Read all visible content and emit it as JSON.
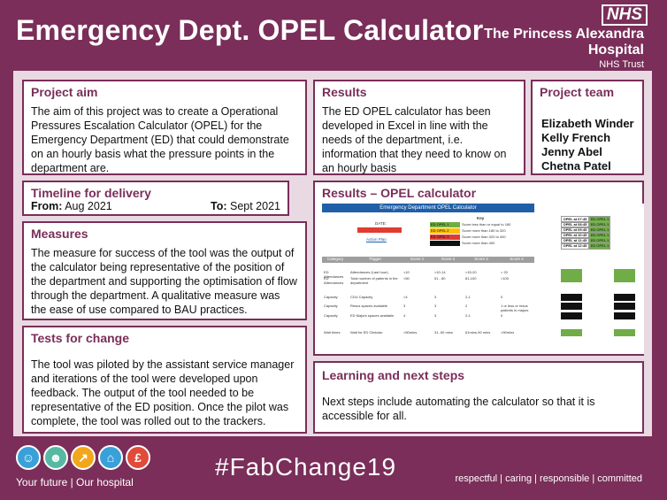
{
  "header": {
    "title": "Emergency Dept. OPEL Calculator",
    "nhs_logo": "NHS",
    "trust_line1": "The Princess Alexandra",
    "trust_line2": "Hospital",
    "trust_line3": "NHS Trust"
  },
  "project_aim": {
    "heading": "Project aim",
    "text": "The aim of this project was to create a Operational Pressures Escalation Calculator (OPEL) for the Emergency Department (ED) that could demonstrate on an hourly basis what the pressure points in the department are."
  },
  "timeline": {
    "heading": "Timeline for delivery",
    "from_label": "From:",
    "from_value": "Aug 2021",
    "to_label": "To:",
    "to_value": "Sept 2021"
  },
  "measures": {
    "heading": "Measures",
    "text": "The measure for success of the tool was the output of the calculator being representative of the position of the department and supporting the optimisation of flow through the department. A qualitative measure was the ease of use compared to BAU practices."
  },
  "tests": {
    "heading": "Tests for change",
    "text": "The tool was piloted by the assistant service manager and iterations of the tool were developed upon feedback. The output of the tool needed to be representative of the ED position. Once the pilot was complete, the tool was rolled out to the trackers."
  },
  "results": {
    "heading": "Results",
    "text": "The ED OPEL calculator has been developed in Excel in line with the needs of the department, i.e. information that they need to know on an hourly basis"
  },
  "team": {
    "heading": "Project team",
    "members": [
      "Elizabeth Winder",
      "Kelly French",
      "Jenny Abel",
      "Chetna Patel"
    ]
  },
  "opel": {
    "heading": "Results – OPEL calculator",
    "sheet_title": "Emergency Department OPEL Calculator",
    "date_label": "DATE:",
    "action_plan": "Action Plan",
    "key_label": "Key",
    "key": [
      {
        "label": "ED OPEL 1",
        "desc": "Score less than or equal to 180",
        "color": "#70ad47"
      },
      {
        "label": "ED OPEL 2",
        "desc": "Score more than 180 to 320",
        "color": "#ffc000"
      },
      {
        "label": "ED OPEL 3",
        "desc": "Score more than 320 to 400",
        "color": "#e03c31"
      },
      {
        "label": "ED OPEL 4",
        "desc": "Score more than 400",
        "color": "#111111"
      }
    ],
    "times": [
      {
        "time": "OPEL at 07:45",
        "status": "ED OPEL 1"
      },
      {
        "time": "OPEL at 08:45",
        "status": "ED OPEL 1"
      },
      {
        "time": "OPEL at 09:45",
        "status": "ED OPEL 1"
      },
      {
        "time": "OPEL at 10:45",
        "status": "ED OPEL 1"
      },
      {
        "time": "OPEL at 11:45",
        "status": "ED OPEL 1"
      },
      {
        "time": "OPEL at 12:45",
        "status": "ED OPEL 1"
      }
    ],
    "col_headers": [
      "Category",
      "Trigger",
      "Score 1",
      "Score 2",
      "Score 3",
      "Score 4"
    ],
    "rows": [
      [
        "ED Attendances",
        "Attendances (Last hour)",
        "<10",
        "<10-14",
        "<15-20",
        "> 20"
      ],
      [
        "ED Attendances",
        "Total number of patients in the department",
        "<50",
        "51 - 80",
        "81-100",
        ">100"
      ],
      [
        "Capacity",
        "CDU Capacity",
        "<4",
        "3",
        "2-1",
        "0"
      ],
      [
        "Capacity",
        "Resus spaces available",
        "3",
        "3",
        "2",
        "1 or less or resus patients in majors"
      ],
      [
        "Capacity",
        "ED Majors spaces available",
        "4",
        "3",
        "2-1",
        "0"
      ],
      [
        "Wait times",
        "Wait for ED Clinician",
        "<50mins",
        "31- 60 mins",
        "61mins-90 mins",
        ">90mins"
      ]
    ]
  },
  "learning": {
    "heading": "Learning and next steps",
    "text": "Next steps include automating the calculator so that it is accessible for all."
  },
  "footer": {
    "tagline": "Your future | Our hospital",
    "hashtag": "#FabChange19",
    "values": "respectful  |  caring  |  responsible  |  committed",
    "icons": [
      {
        "name": "people-icon",
        "color": "#3aa0d8",
        "glyph": "☺"
      },
      {
        "name": "group-icon",
        "color": "#57b9a3",
        "glyph": "☻"
      },
      {
        "name": "growth-icon",
        "color": "#f2a71b",
        "glyph": "↗"
      },
      {
        "name": "home-icon",
        "color": "#3aa0d8",
        "glyph": "⌂"
      },
      {
        "name": "pound-icon",
        "color": "#e04b3a",
        "glyph": "£"
      }
    ]
  }
}
